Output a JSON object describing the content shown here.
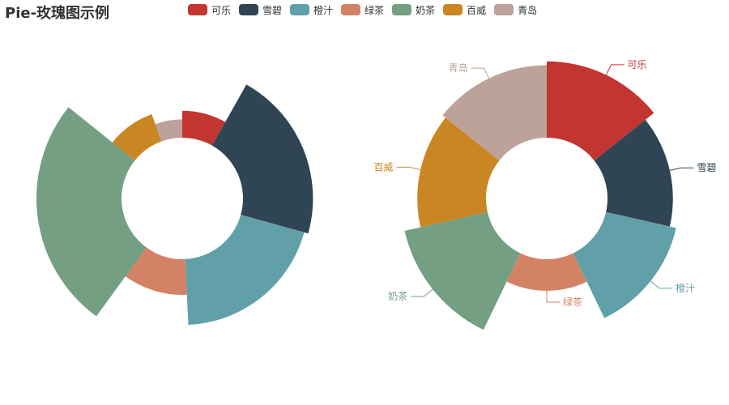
{
  "chart_data": [
    {
      "type": "pie",
      "variant": "rose-radius",
      "title": "Pie-玫瑰图示例",
      "categories": [
        "可乐",
        "雪碧",
        "橙汁",
        "绿茶",
        "奶茶",
        "百威",
        "青岛"
      ],
      "values": [
        59,
        153,
        144,
        78,
        186,
        63,
        40
      ],
      "show_labels": false
    },
    {
      "type": "pie",
      "variant": "rose-area",
      "categories": [
        "可乐",
        "雪碧",
        "橙汁",
        "绿茶",
        "奶茶",
        "百威",
        "青岛"
      ],
      "values": [
        140,
        120,
        132,
        58,
        156,
        126,
        133
      ],
      "show_labels": true
    }
  ],
  "title": "Pie-玫瑰图示例",
  "legend": {
    "items": [
      "可乐",
      "雪碧",
      "橙汁",
      "绿茶",
      "奶茶",
      "百威",
      "青岛"
    ],
    "colors": [
      "#c23531",
      "#2f4554",
      "#61a0a8",
      "#d48265",
      "#749f83",
      "#ca8622",
      "#bda29a"
    ],
    "placement": "top"
  }
}
